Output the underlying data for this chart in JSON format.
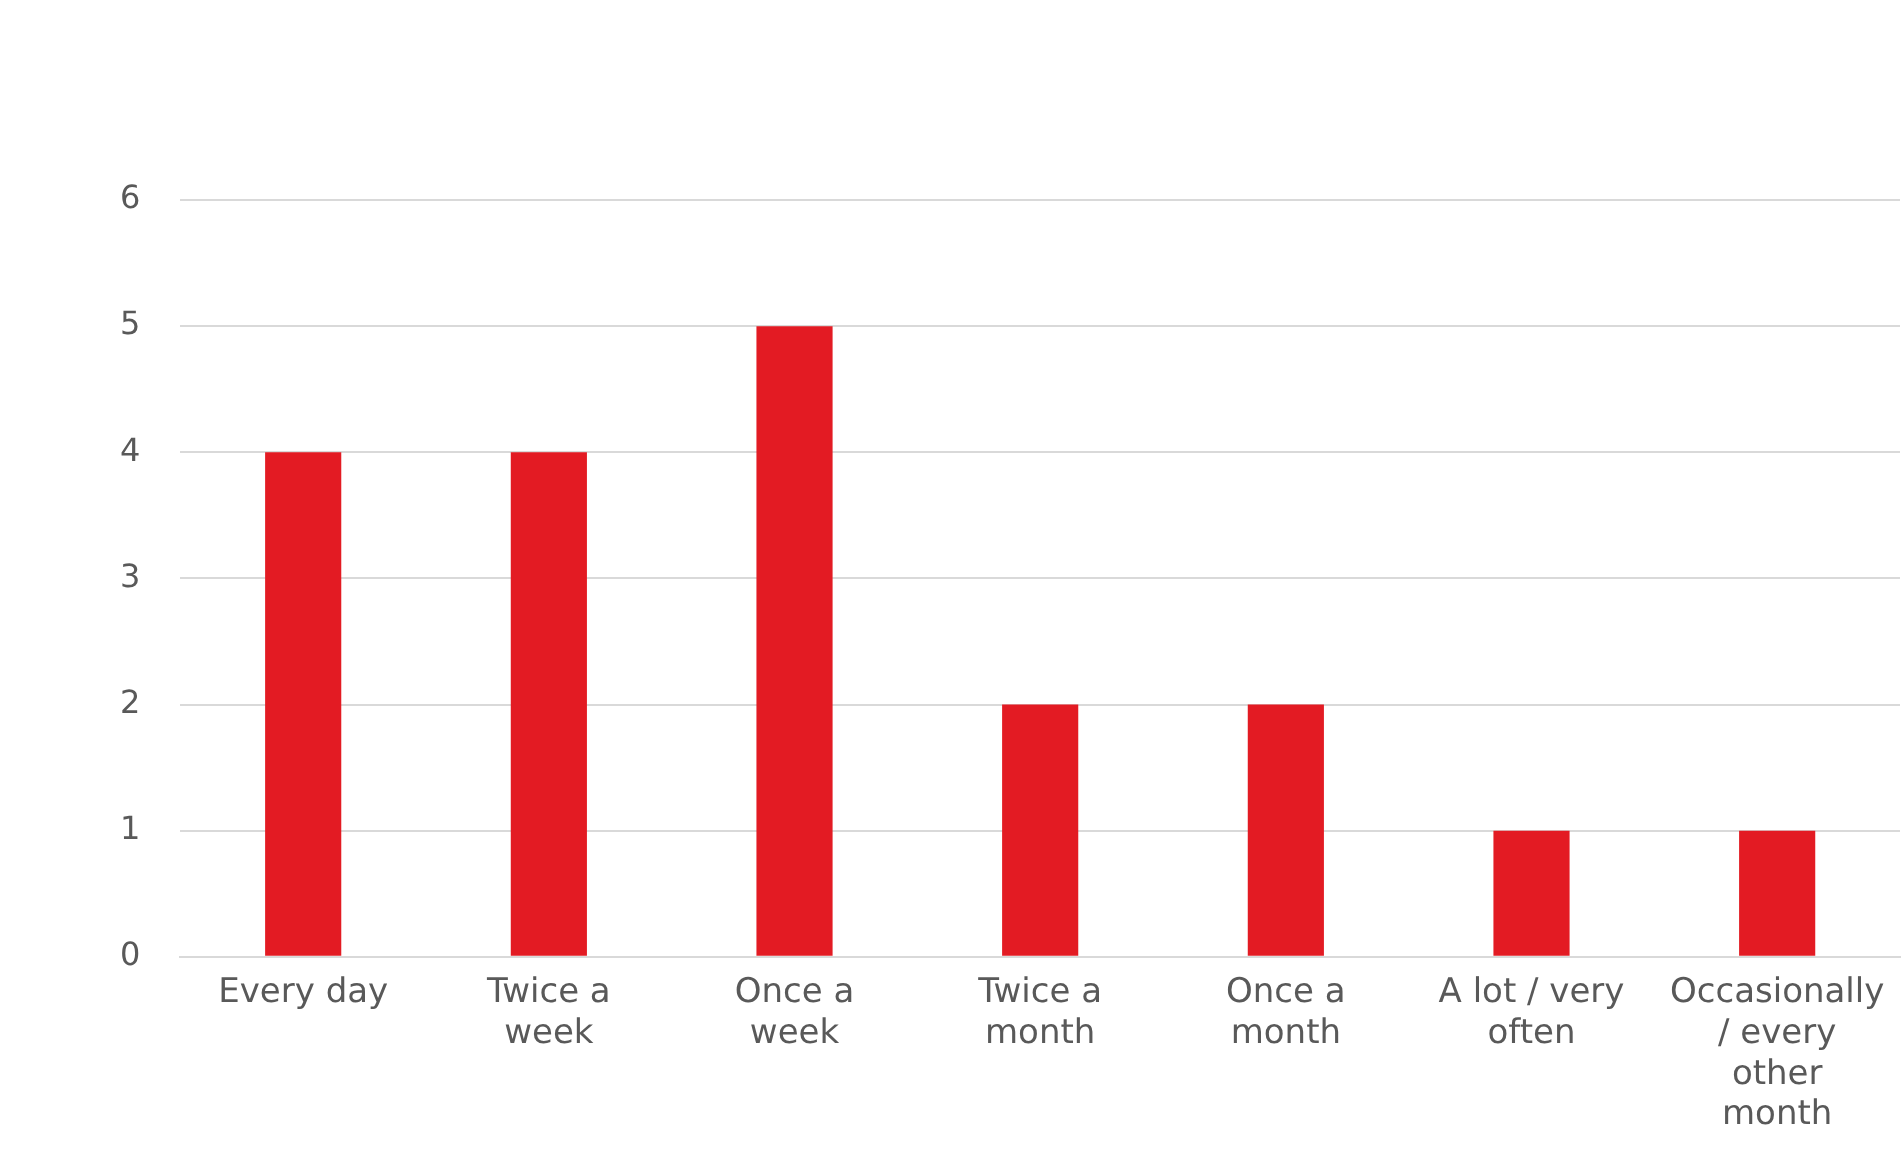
{
  "chart_data": {
    "type": "bar",
    "categories": [
      "Every day",
      "Twice a week",
      "Once a week",
      "Twice a month",
      "Once a month",
      "A lot / very often",
      "Occasionally / every other month"
    ],
    "values": [
      4,
      4,
      5,
      2,
      2,
      1,
      1
    ],
    "color": "#e31b23",
    "ylim": [
      0,
      6
    ],
    "yticks": [
      0,
      1,
      2,
      3,
      4,
      5,
      6
    ],
    "grid": "y"
  }
}
